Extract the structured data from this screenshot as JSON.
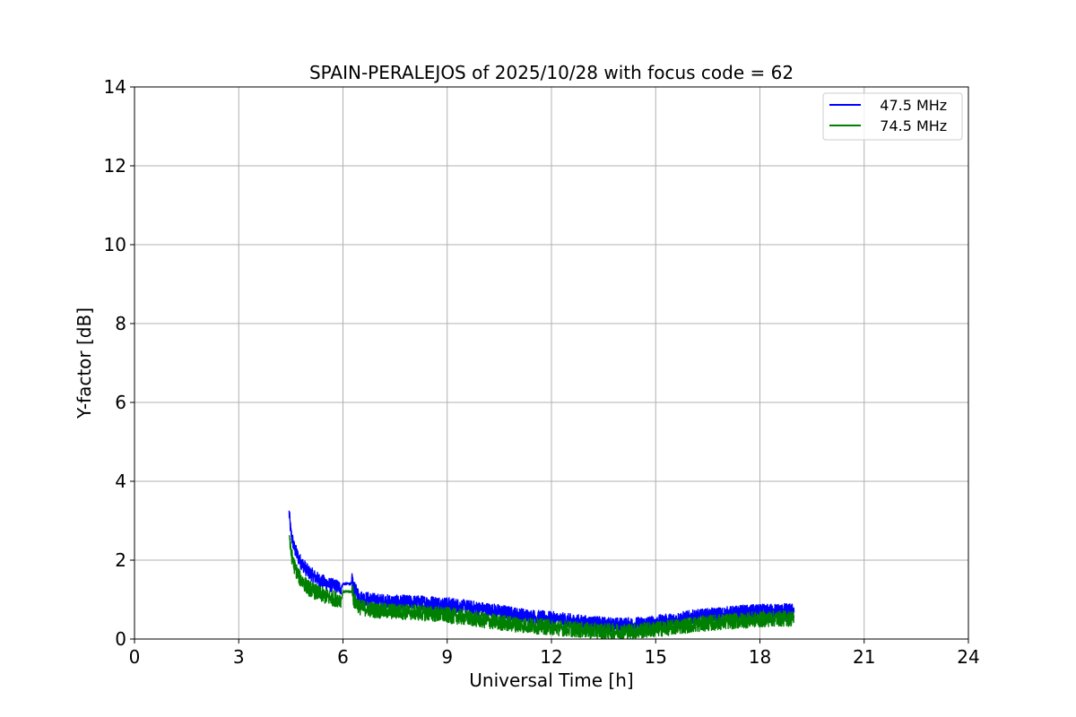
{
  "chart_data": {
    "type": "line",
    "title": "SPAIN-PERALEJOS of 2025/10/28 with focus code = 62",
    "xlabel": "Universal Time [h]",
    "ylabel": "Y-factor [dB]",
    "xlim": [
      0,
      24
    ],
    "ylim": [
      0,
      14
    ],
    "xticks": [
      0,
      3,
      6,
      9,
      12,
      15,
      18,
      21,
      24
    ],
    "yticks": [
      0,
      2,
      4,
      6,
      8,
      10,
      12,
      14
    ],
    "grid": true,
    "legend_position": "top-right",
    "series": [
      {
        "name": "47.5 MHz",
        "legend_label": "   47.5 MHz",
        "color": "#0000ff",
        "noise_band": 0.18,
        "x": [
          4.45,
          4.5,
          4.6,
          4.75,
          5.0,
          5.3,
          5.6,
          5.95,
          6.0,
          6.25,
          6.27,
          6.3,
          6.5,
          7.0,
          7.5,
          8.0,
          8.5,
          9.0,
          9.5,
          10.0,
          10.5,
          11.0,
          11.5,
          12.0,
          12.5,
          13.0,
          13.5,
          14.0,
          14.5,
          15.0,
          15.5,
          16.0,
          16.5,
          17.0,
          17.5,
          18.0,
          18.5,
          18.98
        ],
        "y": [
          3.2,
          2.7,
          2.3,
          2.0,
          1.7,
          1.5,
          1.38,
          1.3,
          1.4,
          1.4,
          1.55,
          1.3,
          1.05,
          0.97,
          0.94,
          0.93,
          0.92,
          0.88,
          0.82,
          0.76,
          0.7,
          0.62,
          0.56,
          0.52,
          0.47,
          0.42,
          0.38,
          0.36,
          0.38,
          0.42,
          0.48,
          0.55,
          0.6,
          0.64,
          0.68,
          0.7,
          0.72,
          0.72
        ]
      },
      {
        "name": "74.5 MHz",
        "legend_label": "   74.5 MHz",
        "color": "#008000",
        "noise_band": 0.2,
        "x": [
          4.45,
          4.5,
          4.6,
          4.75,
          5.0,
          5.3,
          5.6,
          5.95,
          6.0,
          6.25,
          6.27,
          6.3,
          6.5,
          7.0,
          7.5,
          8.0,
          8.5,
          9.0,
          9.5,
          10.0,
          10.5,
          11.0,
          11.5,
          12.0,
          12.5,
          13.0,
          13.5,
          14.0,
          14.5,
          15.0,
          15.5,
          16.0,
          16.5,
          17.0,
          17.5,
          18.0,
          18.5,
          18.98
        ],
        "y": [
          2.7,
          2.2,
          1.85,
          1.55,
          1.3,
          1.15,
          1.05,
          1.0,
          1.2,
          1.2,
          1.3,
          1.0,
          0.8,
          0.72,
          0.7,
          0.68,
          0.65,
          0.6,
          0.55,
          0.48,
          0.42,
          0.37,
          0.33,
          0.3,
          0.26,
          0.22,
          0.2,
          0.19,
          0.21,
          0.25,
          0.3,
          0.36,
          0.4,
          0.44,
          0.47,
          0.5,
          0.52,
          0.52
        ]
      }
    ]
  }
}
